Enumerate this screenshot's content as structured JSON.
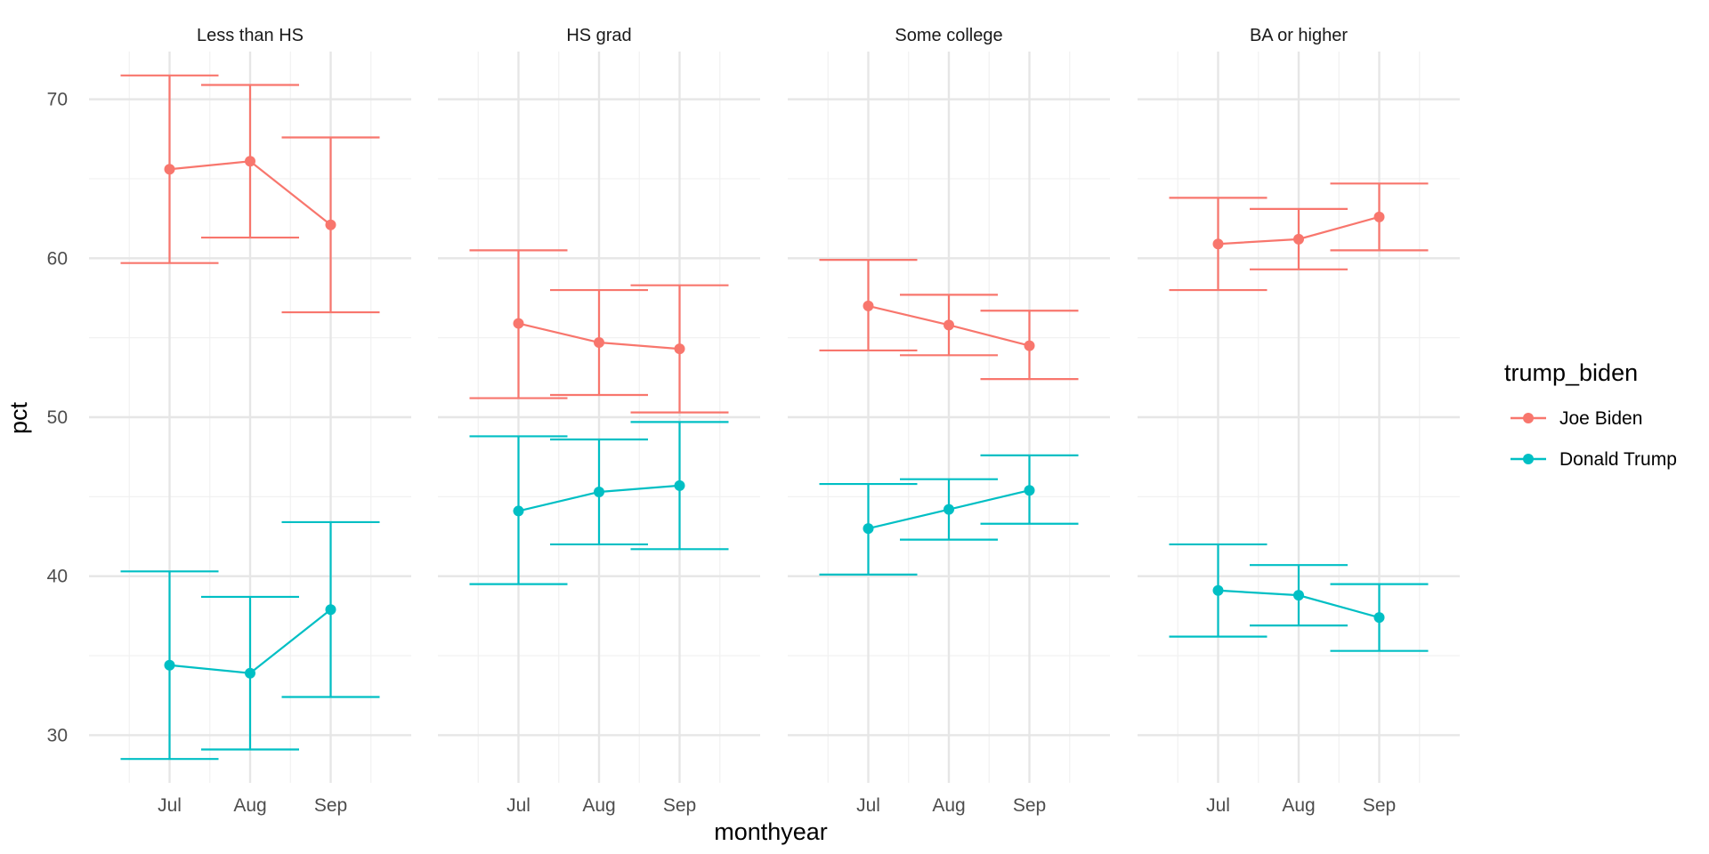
{
  "chart_data": {
    "type": "line",
    "subtype": "faceted point-line with error bars",
    "x_label": "monthyear",
    "y_label": "pct",
    "ylim": [
      27,
      73
    ],
    "y_ticks": [
      30,
      40,
      50,
      60,
      70
    ],
    "categories": [
      "Jul",
      "Aug",
      "Sep"
    ],
    "grid": true,
    "legend": {
      "title": "trump_biden",
      "position": "right",
      "entries": [
        {
          "name": "Joe Biden",
          "color": "#F8766D"
        },
        {
          "name": "Donald Trump",
          "color": "#00BFC4"
        }
      ]
    },
    "facets": [
      {
        "label": "Less than HS",
        "series": [
          {
            "name": "Joe Biden",
            "values": [
              65.6,
              66.1,
              62.1
            ],
            "lower": [
              59.7,
              61.3,
              56.6
            ],
            "upper": [
              71.5,
              70.9,
              67.6
            ]
          },
          {
            "name": "Donald Trump",
            "values": [
              34.4,
              33.9,
              37.9
            ],
            "lower": [
              28.5,
              29.1,
              32.4
            ],
            "upper": [
              40.3,
              38.7,
              43.4
            ]
          }
        ]
      },
      {
        "label": "HS grad",
        "series": [
          {
            "name": "Joe Biden",
            "values": [
              55.9,
              54.7,
              54.3
            ],
            "lower": [
              51.2,
              51.4,
              50.3
            ],
            "upper": [
              60.5,
              58.0,
              58.3
            ]
          },
          {
            "name": "Donald Trump",
            "values": [
              44.1,
              45.3,
              45.7
            ],
            "lower": [
              39.5,
              42.0,
              41.7
            ],
            "upper": [
              48.8,
              48.6,
              49.7
            ]
          }
        ]
      },
      {
        "label": "Some college",
        "series": [
          {
            "name": "Joe Biden",
            "values": [
              57.0,
              55.8,
              54.5
            ],
            "lower": [
              54.2,
              53.9,
              52.4
            ],
            "upper": [
              59.9,
              57.7,
              56.7
            ]
          },
          {
            "name": "Donald Trump",
            "values": [
              43.0,
              44.2,
              45.4
            ],
            "lower": [
              40.1,
              42.3,
              43.3
            ],
            "upper": [
              45.8,
              46.1,
              47.6
            ]
          }
        ]
      },
      {
        "label": "BA or higher",
        "series": [
          {
            "name": "Joe Biden",
            "values": [
              60.9,
              61.2,
              62.6
            ],
            "lower": [
              58.0,
              59.3,
              60.5
            ],
            "upper": [
              63.8,
              63.1,
              64.7
            ]
          },
          {
            "name": "Donald Trump",
            "values": [
              39.1,
              38.8,
              37.4
            ],
            "lower": [
              36.2,
              36.9,
              35.3
            ],
            "upper": [
              42.0,
              40.7,
              39.5
            ]
          }
        ]
      }
    ]
  }
}
